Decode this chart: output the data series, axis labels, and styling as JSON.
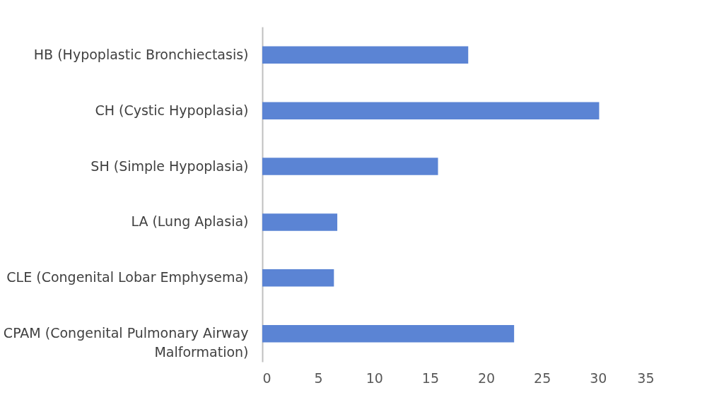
{
  "chart_data": {
    "type": "bar",
    "orientation": "horizontal",
    "categories": [
      "HB (Hypoplastic Bronchiectasis)",
      "CH (Cystic Hypoplasia)",
      "SH (Simple Hypoplasia)",
      "LA (Lung Aplasia)",
      "CLE (Congenital Lobar Emphysema)",
      "CPAM (Congenital Pulmonary Airway Malformation)"
    ],
    "values": [
      18.4,
      30.1,
      15.7,
      6.7,
      6.4,
      22.5
    ],
    "color": "#5b84d4",
    "xlim": [
      0,
      35
    ],
    "xticks": [
      0,
      5,
      10,
      15,
      20,
      25,
      30,
      35
    ],
    "grid": false
  }
}
